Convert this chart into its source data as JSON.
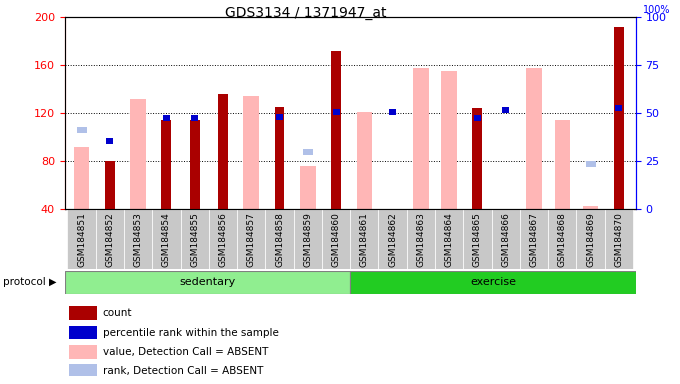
{
  "title": "GDS3134 / 1371947_at",
  "samples": [
    "GSM184851",
    "GSM184852",
    "GSM184853",
    "GSM184854",
    "GSM184855",
    "GSM184856",
    "GSM184857",
    "GSM184858",
    "GSM184859",
    "GSM184860",
    "GSM184861",
    "GSM184862",
    "GSM184863",
    "GSM184864",
    "GSM184865",
    "GSM184866",
    "GSM184867",
    "GSM184868",
    "GSM184869",
    "GSM184870"
  ],
  "count": [
    null,
    80,
    null,
    114,
    114,
    136,
    null,
    125,
    null,
    172,
    null,
    null,
    null,
    null,
    124,
    null,
    null,
    null,
    null,
    192
  ],
  "percentile_rank": [
    null,
    97,
    null,
    116,
    116,
    null,
    null,
    117,
    null,
    121,
    null,
    121,
    null,
    null,
    116,
    123,
    null,
    null,
    null,
    124
  ],
  "value_absent": [
    92,
    null,
    132,
    null,
    null,
    null,
    134,
    null,
    76,
    null,
    121,
    null,
    158,
    155,
    null,
    null,
    158,
    114,
    43,
    null
  ],
  "rank_absent": [
    106,
    null,
    null,
    null,
    null,
    null,
    null,
    null,
    88,
    null,
    null,
    null,
    null,
    null,
    null,
    null,
    null,
    null,
    78,
    null
  ],
  "sedentary_count": 10,
  "ylim": [
    40,
    200
  ],
  "ylim_right": [
    0,
    100
  ],
  "yticks_left": [
    40,
    80,
    120,
    160,
    200
  ],
  "yticks_right": [
    0,
    25,
    50,
    75,
    100
  ],
  "count_color": "#aa0000",
  "rank_color": "#0000cc",
  "value_absent_color": "#ffb6b6",
  "rank_absent_color": "#b0c0e8",
  "sedentary_color": "#90ee90",
  "exercise_color": "#22cc22",
  "xtick_bg": "#c8c8c8"
}
